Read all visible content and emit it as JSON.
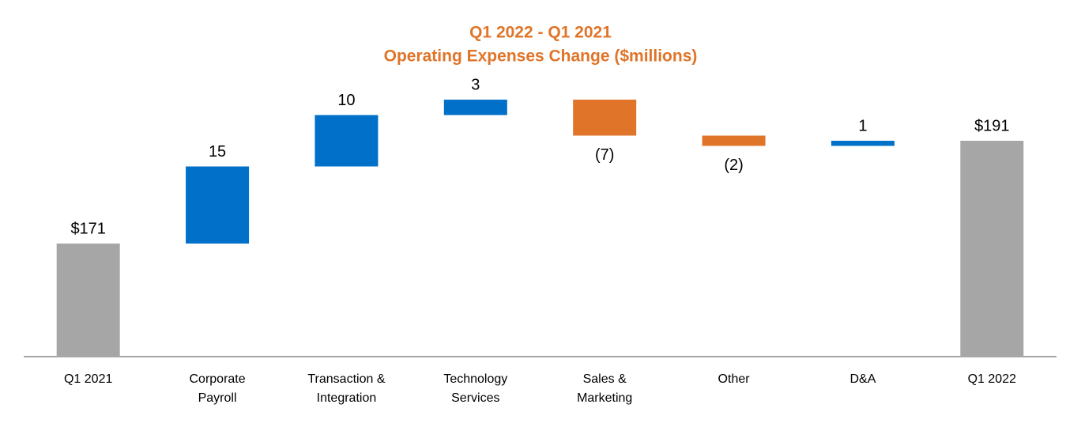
{
  "chart_data": {
    "type": "waterfall",
    "title": "Q1 2022 - Q1 2021",
    "subtitle": "Operating Expenses Change ($millions)",
    "categories": [
      "Q1 2021",
      "Corporate Payroll",
      "Transaction & Integration",
      "Technology Services",
      "Sales & Marketing",
      "Other",
      "D&A",
      "Q1 2022"
    ],
    "values": [
      171,
      15,
      10,
      3,
      -7,
      -2,
      1,
      191
    ],
    "value_labels": [
      "$171",
      "15",
      "10",
      "3",
      "(7)",
      "(2)",
      "1",
      "$191"
    ],
    "total_color": "#a6a6a6",
    "increase_color": "#0070c8",
    "decrease_color": "#e07428",
    "ylim": [
      149,
      201
    ]
  }
}
